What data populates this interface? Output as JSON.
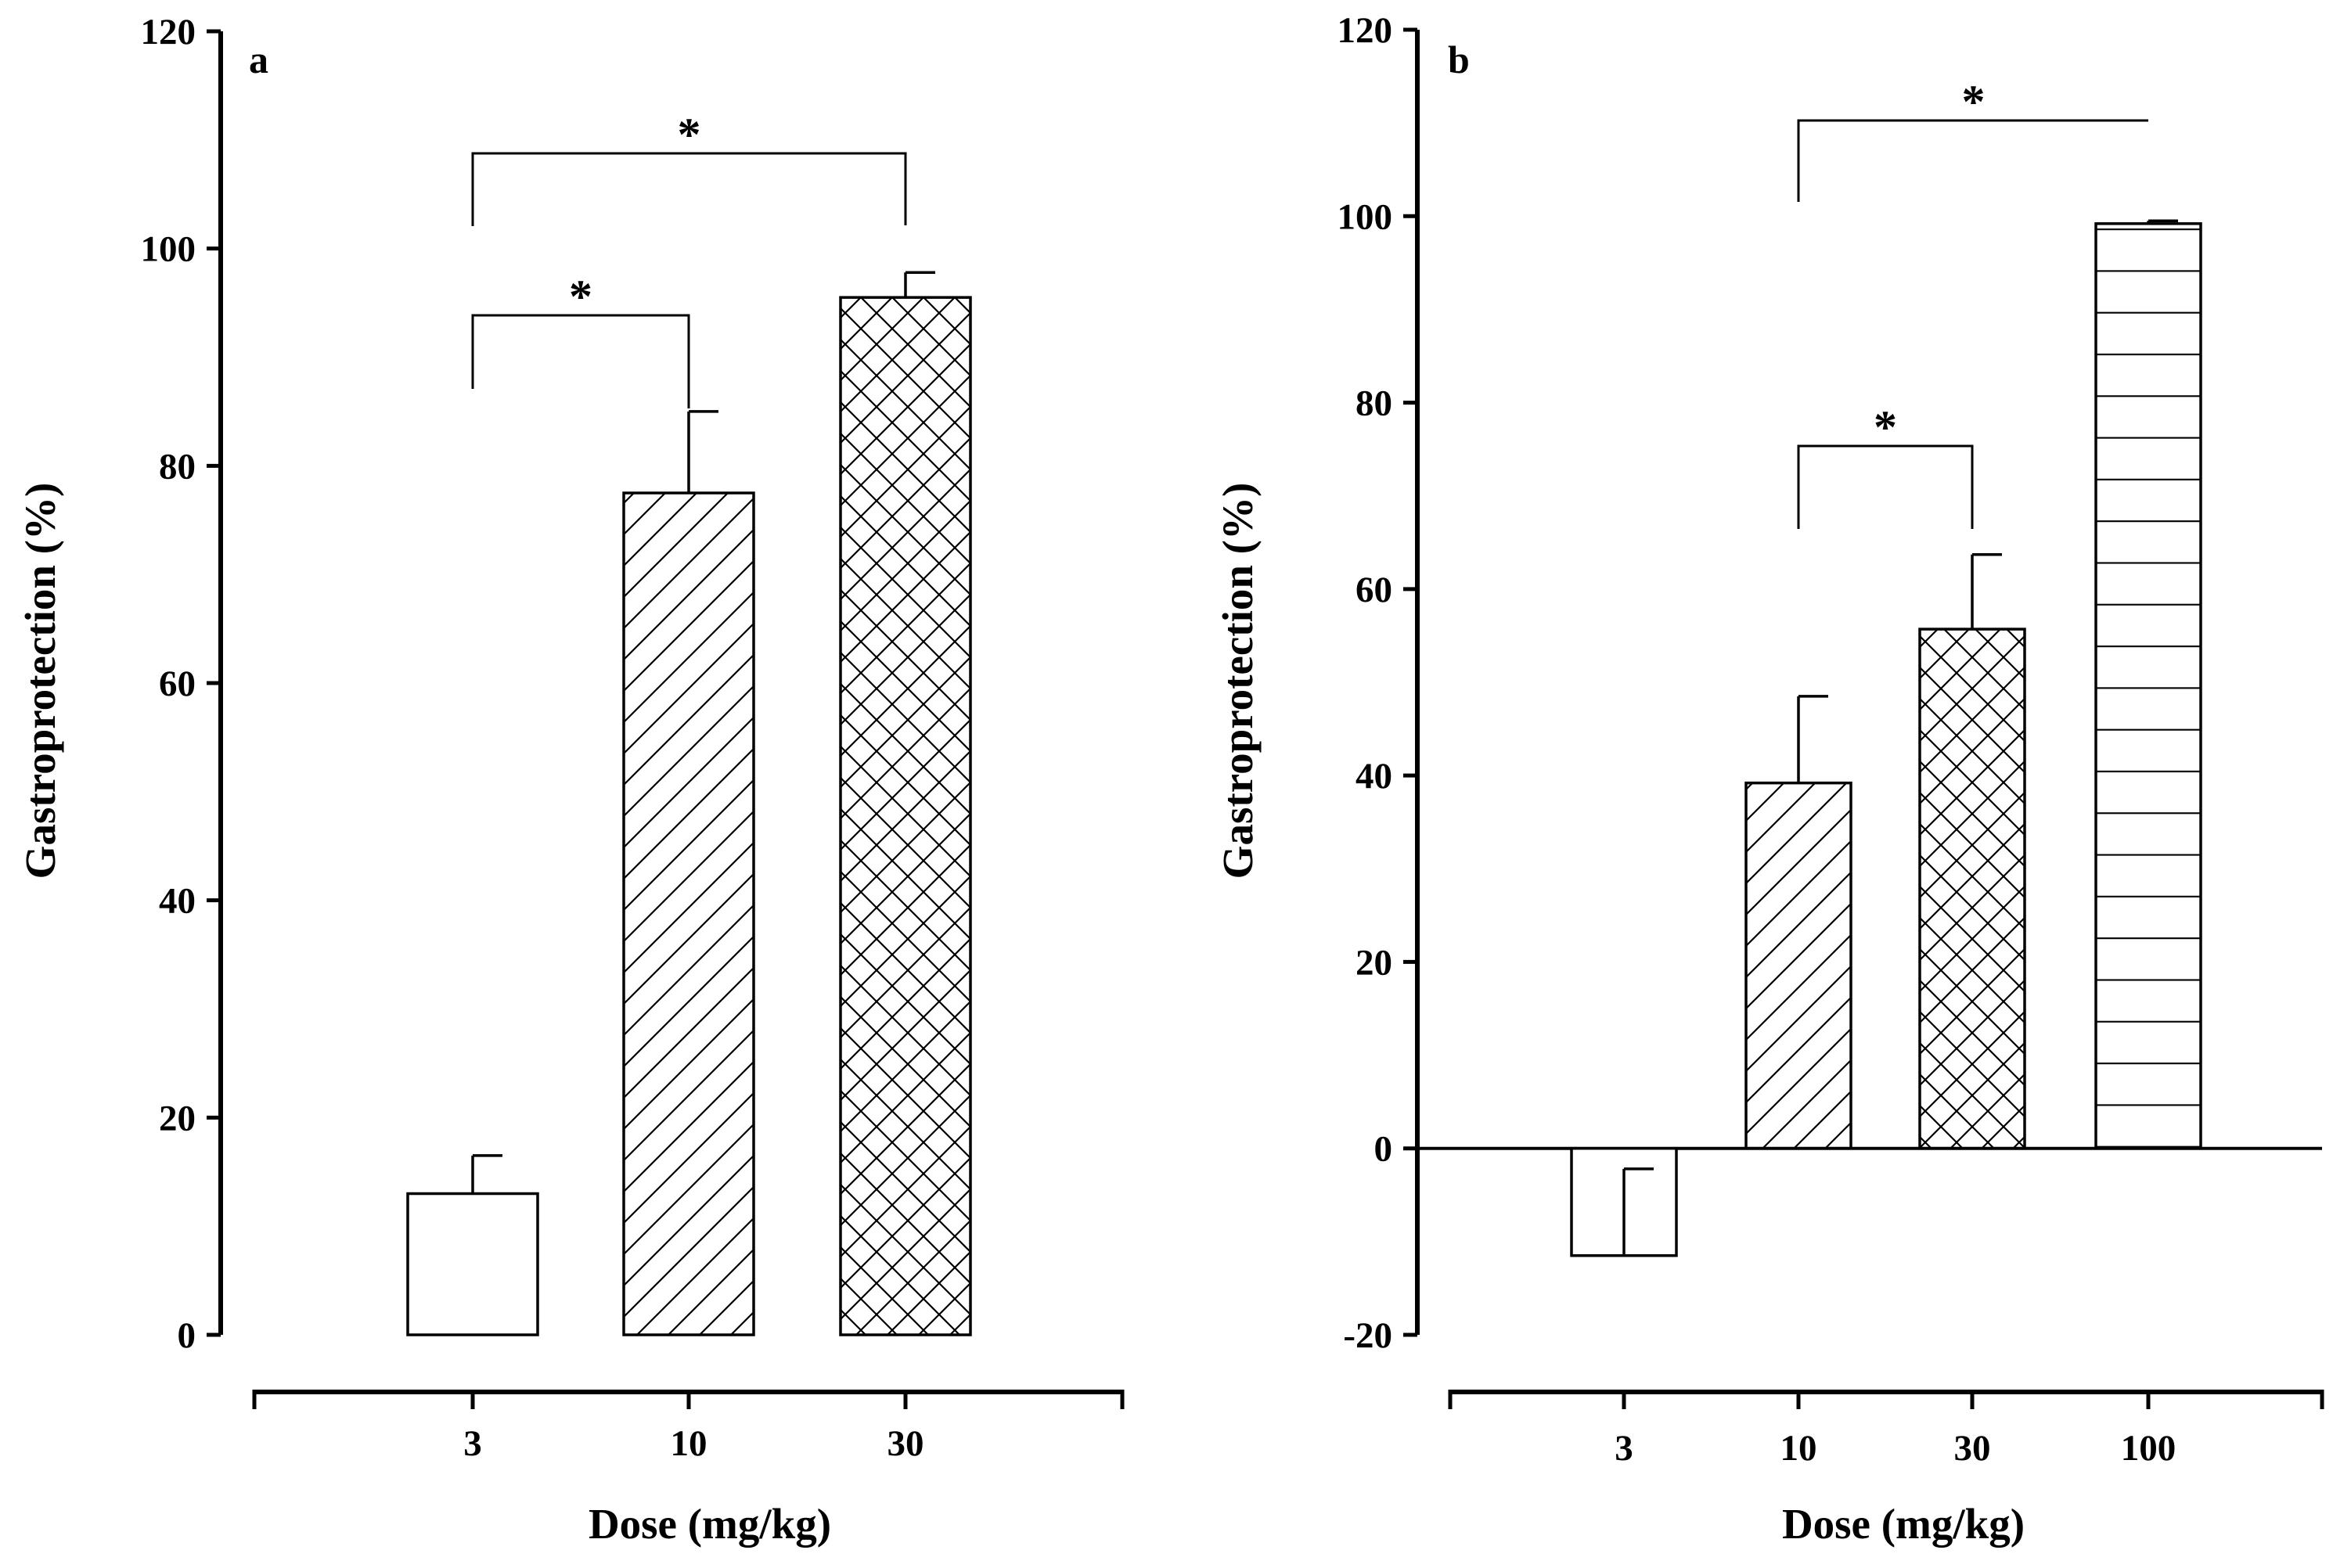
{
  "chart_data": [
    {
      "panel": "a",
      "type": "bar",
      "title": "",
      "xlabel": "Dose (mg/kg)",
      "ylabel": "Gastroprotection (%)",
      "ylim": [
        0,
        120
      ],
      "yticks": [
        0,
        20,
        40,
        60,
        80,
        100,
        120
      ],
      "categories": [
        "3",
        "10",
        "30"
      ],
      "values": [
        13,
        77.5,
        95.5
      ],
      "errors": [
        3.5,
        7.5,
        2.3
      ],
      "fills": [
        "none",
        "diagonal",
        "crosshatch"
      ],
      "significance": [
        {
          "from": "3",
          "to": "10",
          "label": "*"
        },
        {
          "from": "3",
          "to": "30",
          "label": "*"
        }
      ]
    },
    {
      "panel": "b",
      "type": "bar",
      "title": "",
      "xlabel": "Dose (mg/kg)",
      "ylabel": "Gastroprotection (%)",
      "ylim": [
        -20,
        120
      ],
      "yticks": [
        -20,
        0,
        20,
        40,
        60,
        80,
        100,
        120
      ],
      "categories": [
        "3",
        "10",
        "30",
        "100"
      ],
      "values": [
        -11.5,
        39.2,
        55.7,
        99.2
      ],
      "errors": [
        9.3,
        9.3,
        8,
        0.3
      ],
      "fills": [
        "none",
        "diagonal",
        "crosshatch",
        "horizontal"
      ],
      "significance": [
        {
          "from": "10",
          "to": "30",
          "label": "*"
        },
        {
          "from": "10",
          "to": "100",
          "label": "*"
        }
      ]
    }
  ]
}
